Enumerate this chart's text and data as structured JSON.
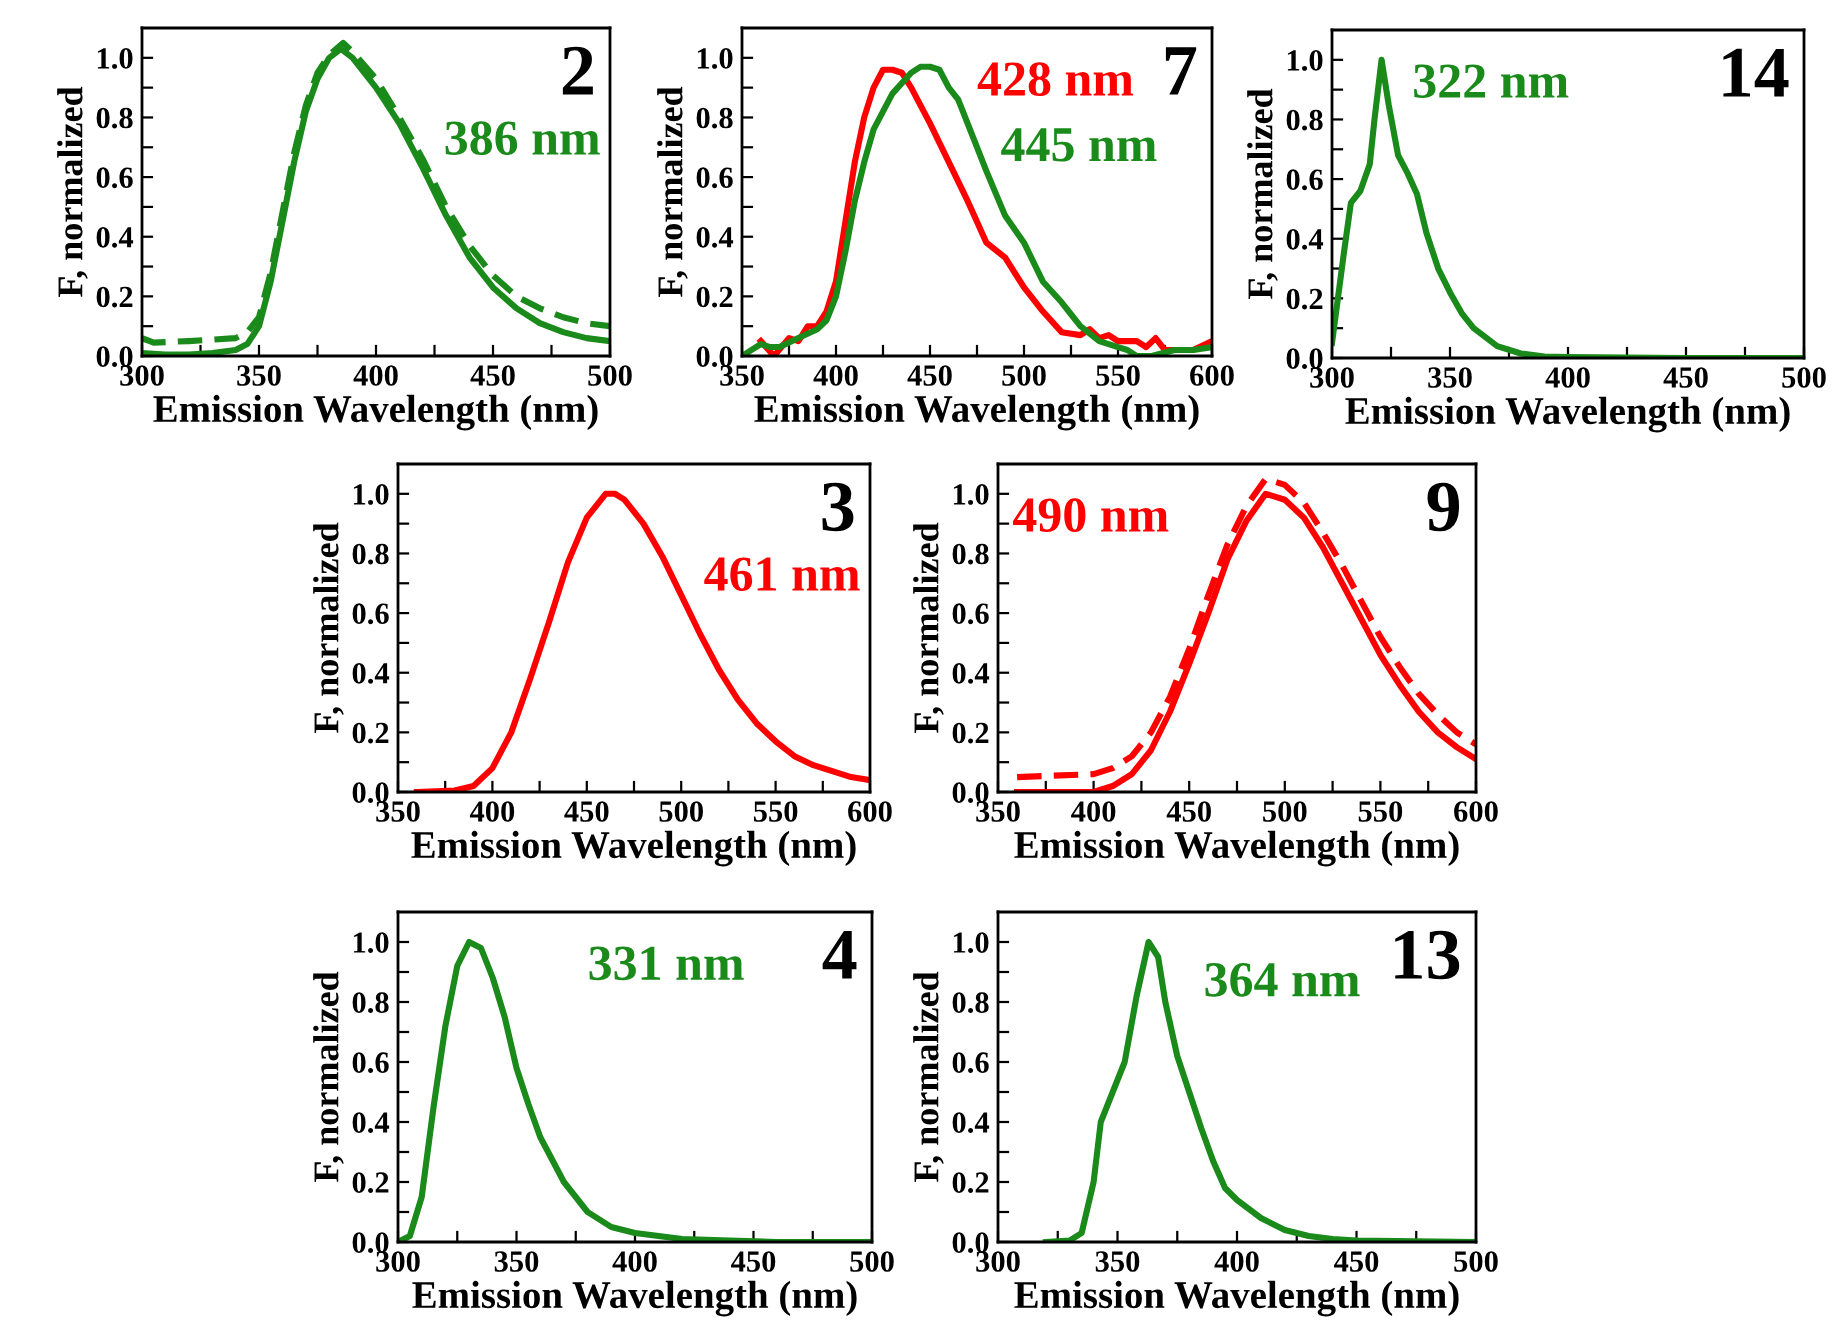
{
  "chart_data": [
    {
      "type": "line",
      "title": "2",
      "xlabel": "Emission Wavelength (nm)",
      "ylabel": "F, normalized",
      "xlim": [
        300,
        500
      ],
      "ylim": [
        0,
        1.1
      ],
      "xticks": [
        300,
        {
          "value": 325,
          "label": null
        },
        350,
        {
          "value": 375,
          "label": null
        },
        400,
        {
          "value": 425,
          "label": null
        },
        450,
        {
          "value": 475,
          "label": null
        },
        500
      ],
      "yticks": [
        {
          "value": 0.0,
          "label": "0.0"
        },
        {
          "value": 0.1,
          "label": null
        },
        {
          "value": 0.2,
          "label": "0.2"
        },
        {
          "value": 0.3,
          "label": null
        },
        {
          "value": 0.4,
          "label": "0.4"
        },
        {
          "value": 0.5,
          "label": null
        },
        {
          "value": 0.6,
          "label": "0.6"
        },
        {
          "value": 0.7,
          "label": null
        },
        {
          "value": 0.8,
          "label": "0.8"
        },
        {
          "value": 0.9,
          "label": null
        },
        {
          "value": 1.0,
          "label": "1.0"
        }
      ],
      "series": [
        {
          "color": "#1a8a1a",
          "line_style": "solid",
          "x": [
            300,
            310,
            320,
            330,
            340,
            345,
            350,
            355,
            360,
            365,
            370,
            375,
            380,
            385,
            390,
            400,
            410,
            420,
            430,
            440,
            450,
            460,
            470,
            480,
            490,
            500
          ],
          "values": [
            0.01,
            0.005,
            0.005,
            0.01,
            0.02,
            0.04,
            0.1,
            0.25,
            0.45,
            0.65,
            0.82,
            0.93,
            1.0,
            1.03,
            1.0,
            0.9,
            0.78,
            0.63,
            0.47,
            0.33,
            0.23,
            0.16,
            0.11,
            0.08,
            0.06,
            0.05
          ]
        },
        {
          "color": "#1a8a1a",
          "line_style": "dashed",
          "x": [
            300,
            305,
            320,
            340,
            345,
            350,
            355,
            360,
            365,
            370,
            375,
            380,
            386,
            390,
            400,
            410,
            420,
            430,
            440,
            450,
            460,
            470,
            480,
            490,
            500
          ],
          "values": [
            0.06,
            0.045,
            0.05,
            0.06,
            0.08,
            0.13,
            0.28,
            0.48,
            0.68,
            0.84,
            0.95,
            1.01,
            1.05,
            1.02,
            0.93,
            0.8,
            0.66,
            0.5,
            0.37,
            0.27,
            0.2,
            0.16,
            0.13,
            0.11,
            0.1
          ]
        }
      ],
      "annotations": [
        "386 nm"
      ]
    },
    {
      "type": "line",
      "title": "7",
      "xlabel": "Emission Wavelength (nm)",
      "ylabel": "F, normalized",
      "xlim": [
        350,
        600
      ],
      "ylim": [
        0,
        1.1
      ],
      "xticks": [
        350,
        {
          "value": 375,
          "label": null
        },
        400,
        {
          "value": 425,
          "label": null
        },
        450,
        {
          "value": 475,
          "label": null
        },
        500,
        {
          "value": 525,
          "label": null
        },
        550,
        {
          "value": 575,
          "label": null
        },
        600
      ],
      "yticks": [
        {
          "value": 0.0,
          "label": "0.0"
        },
        {
          "value": 0.1,
          "label": null
        },
        {
          "value": 0.2,
          "label": "0.2"
        },
        {
          "value": 0.3,
          "label": null
        },
        {
          "value": 0.4,
          "label": "0.4"
        },
        {
          "value": 0.5,
          "label": null
        },
        {
          "value": 0.6,
          "label": "0.6"
        },
        {
          "value": 0.7,
          "label": null
        },
        {
          "value": 0.8,
          "label": "0.8"
        },
        {
          "value": 0.9,
          "label": null
        },
        {
          "value": 1.0,
          "label": "1.0"
        }
      ],
      "series": [
        {
          "color": "#ff0000",
          "line_style": "solid",
          "x": [
            360,
            367,
            375,
            380,
            385,
            390,
            395,
            400,
            405,
            410,
            415,
            420,
            425,
            430,
            435,
            440,
            450,
            460,
            470,
            475,
            480,
            490,
            500,
            510,
            520,
            530,
            535,
            540,
            545,
            550,
            555,
            560,
            565,
            570,
            575,
            580,
            590,
            600
          ],
          "values": [
            0.05,
            0.0,
            0.06,
            0.05,
            0.1,
            0.1,
            0.15,
            0.25,
            0.45,
            0.65,
            0.8,
            0.9,
            0.96,
            0.96,
            0.95,
            0.9,
            0.78,
            0.65,
            0.52,
            0.45,
            0.38,
            0.33,
            0.23,
            0.15,
            0.08,
            0.07,
            0.09,
            0.06,
            0.07,
            0.05,
            0.05,
            0.05,
            0.03,
            0.06,
            0.02,
            0.02,
            0.02,
            0.05
          ]
        },
        {
          "color": "#1a8a1a",
          "line_style": "solid",
          "x": [
            350,
            355,
            360,
            365,
            370,
            380,
            390,
            395,
            400,
            405,
            410,
            415,
            420,
            430,
            440,
            445,
            450,
            455,
            460,
            465,
            470,
            480,
            490,
            500,
            510,
            520,
            525,
            530,
            540,
            550,
            555,
            560,
            568,
            580,
            590,
            600
          ],
          "values": [
            0.0,
            0.02,
            0.04,
            0.03,
            0.03,
            0.06,
            0.09,
            0.12,
            0.2,
            0.35,
            0.52,
            0.65,
            0.76,
            0.88,
            0.95,
            0.97,
            0.97,
            0.96,
            0.9,
            0.86,
            0.78,
            0.62,
            0.47,
            0.38,
            0.25,
            0.18,
            0.14,
            0.1,
            0.05,
            0.03,
            0.02,
            0.0,
            0.0,
            0.02,
            0.02,
            0.03
          ]
        }
      ],
      "annotations": [
        "428 nm",
        "445 nm"
      ]
    },
    {
      "type": "line",
      "title": "14",
      "xlabel": "Emission Wavelength (nm)",
      "ylabel": "F, normalized",
      "xlim": [
        300,
        500
      ],
      "ylim": [
        0,
        1.1
      ],
      "xticks": [
        300,
        {
          "value": 325,
          "label": null
        },
        350,
        {
          "value": 375,
          "label": null
        },
        400,
        {
          "value": 425,
          "label": null
        },
        450,
        {
          "value": 475,
          "label": null
        },
        500
      ],
      "yticks": [
        {
          "value": 0.0,
          "label": "0.0"
        },
        {
          "value": 0.1,
          "label": null
        },
        {
          "value": 0.2,
          "label": "0.2"
        },
        {
          "value": 0.3,
          "label": null
        },
        {
          "value": 0.4,
          "label": "0.4"
        },
        {
          "value": 0.5,
          "label": null
        },
        {
          "value": 0.6,
          "label": "0.6"
        },
        {
          "value": 0.7,
          "label": null
        },
        {
          "value": 0.8,
          "label": "0.8"
        },
        {
          "value": 0.9,
          "label": null
        },
        {
          "value": 1.0,
          "label": "1.0"
        }
      ],
      "series": [
        {
          "color": "#1a8a1a",
          "line_style": "solid",
          "x": [
            300,
            305,
            308,
            312,
            316,
            318,
            321,
            324,
            328,
            332,
            336,
            340,
            345,
            350,
            355,
            360,
            370,
            380,
            390,
            400,
            450,
            500
          ],
          "values": [
            0.05,
            0.35,
            0.52,
            0.56,
            0.65,
            0.8,
            1.0,
            0.85,
            0.68,
            0.62,
            0.55,
            0.42,
            0.3,
            0.22,
            0.15,
            0.1,
            0.04,
            0.015,
            0.005,
            0.003,
            0.0,
            0.0
          ]
        }
      ],
      "annotations": [
        "322 nm"
      ]
    },
    {
      "type": "line",
      "title": "3",
      "xlabel": "Emission Wavelength (nm)",
      "ylabel": "F, normalized",
      "xlim": [
        350,
        600
      ],
      "ylim": [
        0,
        1.1
      ],
      "xticks": [
        350,
        {
          "value": 375,
          "label": null
        },
        400,
        {
          "value": 425,
          "label": null
        },
        450,
        {
          "value": 475,
          "label": null
        },
        500,
        {
          "value": 525,
          "label": null
        },
        550,
        {
          "value": 575,
          "label": null
        },
        600
      ],
      "yticks": [
        {
          "value": 0.0,
          "label": "0.0"
        },
        {
          "value": 0.1,
          "label": null
        },
        {
          "value": 0.2,
          "label": "0.2"
        },
        {
          "value": 0.3,
          "label": null
        },
        {
          "value": 0.4,
          "label": "0.4"
        },
        {
          "value": 0.5,
          "label": null
        },
        {
          "value": 0.6,
          "label": "0.6"
        },
        {
          "value": 0.7,
          "label": null
        },
        {
          "value": 0.8,
          "label": "0.8"
        },
        {
          "value": 0.9,
          "label": null
        },
        {
          "value": 1.0,
          "label": "1.0"
        }
      ],
      "series": [
        {
          "color": "#ff0000",
          "line_style": "solid",
          "x": [
            360,
            380,
            390,
            400,
            410,
            420,
            430,
            440,
            450,
            460,
            465,
            470,
            480,
            490,
            500,
            510,
            520,
            530,
            540,
            550,
            560,
            570,
            580,
            590,
            600
          ],
          "values": [
            0.0,
            0.005,
            0.02,
            0.08,
            0.2,
            0.38,
            0.57,
            0.77,
            0.92,
            1.0,
            1.0,
            0.98,
            0.9,
            0.79,
            0.66,
            0.53,
            0.41,
            0.31,
            0.23,
            0.17,
            0.12,
            0.09,
            0.07,
            0.05,
            0.04
          ]
        }
      ],
      "annotations": [
        "461 nm"
      ]
    },
    {
      "type": "line",
      "title": "9",
      "xlabel": "Emission Wavelength (nm)",
      "ylabel": "F, normalized",
      "xlim": [
        350,
        600
      ],
      "ylim": [
        0,
        1.1
      ],
      "xticks": [
        350,
        {
          "value": 375,
          "label": null
        },
        400,
        {
          "value": 425,
          "label": null
        },
        450,
        {
          "value": 475,
          "label": null
        },
        500,
        {
          "value": 525,
          "label": null
        },
        550,
        {
          "value": 575,
          "label": null
        },
        600
      ],
      "yticks": [
        {
          "value": 0.0,
          "label": "0.0"
        },
        {
          "value": 0.1,
          "label": null
        },
        {
          "value": 0.2,
          "label": "0.2"
        },
        {
          "value": 0.3,
          "label": null
        },
        {
          "value": 0.4,
          "label": "0.4"
        },
        {
          "value": 0.5,
          "label": null
        },
        {
          "value": 0.6,
          "label": "0.6"
        },
        {
          "value": 0.7,
          "label": null
        },
        {
          "value": 0.8,
          "label": "0.8"
        },
        {
          "value": 0.9,
          "label": null
        },
        {
          "value": 1.0,
          "label": "1.0"
        }
      ],
      "series": [
        {
          "color": "#ff0000",
          "line_style": "solid",
          "x": [
            360,
            400,
            410,
            420,
            430,
            440,
            450,
            460,
            470,
            480,
            490,
            500,
            510,
            520,
            530,
            540,
            550,
            560,
            570,
            580,
            590,
            600
          ],
          "values": [
            0.0,
            0.0,
            0.02,
            0.06,
            0.14,
            0.27,
            0.43,
            0.6,
            0.78,
            0.91,
            1.0,
            0.98,
            0.92,
            0.82,
            0.7,
            0.58,
            0.46,
            0.36,
            0.27,
            0.2,
            0.15,
            0.11
          ]
        },
        {
          "color": "#ff0000",
          "line_style": "dashed",
          "x": [
            360,
            400,
            410,
            420,
            430,
            440,
            450,
            460,
            470,
            480,
            490,
            500,
            510,
            520,
            530,
            540,
            550,
            560,
            570,
            580,
            590,
            600
          ],
          "values": [
            0.05,
            0.06,
            0.08,
            0.12,
            0.2,
            0.32,
            0.48,
            0.66,
            0.83,
            0.96,
            1.05,
            1.03,
            0.97,
            0.87,
            0.76,
            0.64,
            0.52,
            0.42,
            0.33,
            0.26,
            0.2,
            0.16
          ]
        }
      ],
      "annotations": [
        "490 nm"
      ]
    },
    {
      "type": "line",
      "title": "4",
      "xlabel": "Emission Wavelength (nm)",
      "ylabel": "F, normalized",
      "xlim": [
        300,
        500
      ],
      "ylim": [
        0,
        1.1
      ],
      "xticks": [
        300,
        {
          "value": 325,
          "label": null
        },
        350,
        {
          "value": 375,
          "label": null
        },
        400,
        {
          "value": 425,
          "label": null
        },
        450,
        {
          "value": 475,
          "label": null
        },
        500
      ],
      "yticks": [
        {
          "value": 0.0,
          "label": "0.0"
        },
        {
          "value": 0.1,
          "label": null
        },
        {
          "value": 0.2,
          "label": "0.2"
        },
        {
          "value": 0.3,
          "label": null
        },
        {
          "value": 0.4,
          "label": "0.4"
        },
        {
          "value": 0.5,
          "label": null
        },
        {
          "value": 0.6,
          "label": "0.6"
        },
        {
          "value": 0.7,
          "label": null
        },
        {
          "value": 0.8,
          "label": "0.8"
        },
        {
          "value": 0.9,
          "label": null
        },
        {
          "value": 1.0,
          "label": "1.0"
        }
      ],
      "series": [
        {
          "color": "#1a8a1a",
          "line_style": "solid",
          "x": [
            300,
            305,
            310,
            315,
            320,
            325,
            330,
            335,
            340,
            345,
            350,
            355,
            360,
            370,
            380,
            390,
            400,
            420,
            440,
            460,
            500
          ],
          "values": [
            0.0,
            0.02,
            0.15,
            0.45,
            0.72,
            0.92,
            1.0,
            0.98,
            0.88,
            0.75,
            0.58,
            0.46,
            0.35,
            0.2,
            0.1,
            0.05,
            0.03,
            0.01,
            0.005,
            0.0,
            0.0
          ]
        }
      ],
      "annotations": [
        "331 nm"
      ]
    },
    {
      "type": "line",
      "title": "13",
      "xlabel": "Emission Wavelength (nm)",
      "ylabel": "F, normalized",
      "xlim": [
        300,
        500
      ],
      "ylim": [
        0,
        1.1
      ],
      "xticks": [
        300,
        {
          "value": 325,
          "label": null
        },
        350,
        {
          "value": 375,
          "label": null
        },
        400,
        {
          "value": 425,
          "label": null
        },
        450,
        {
          "value": 475,
          "label": null
        },
        500
      ],
      "yticks": [
        {
          "value": 0.0,
          "label": "0.0"
        },
        {
          "value": 0.1,
          "label": null
        },
        {
          "value": 0.2,
          "label": "0.2"
        },
        {
          "value": 0.3,
          "label": null
        },
        {
          "value": 0.4,
          "label": "0.4"
        },
        {
          "value": 0.5,
          "label": null
        },
        {
          "value": 0.6,
          "label": "0.6"
        },
        {
          "value": 0.7,
          "label": null
        },
        {
          "value": 0.8,
          "label": "0.8"
        },
        {
          "value": 0.9,
          "label": null
        },
        {
          "value": 1.0,
          "label": "1.0"
        }
      ],
      "series": [
        {
          "color": "#1a8a1a",
          "line_style": "solid",
          "x": [
            320,
            330,
            335,
            340,
            343,
            348,
            353,
            358,
            363,
            367,
            370,
            375,
            380,
            385,
            390,
            395,
            400,
            410,
            420,
            430,
            440,
            450,
            500
          ],
          "values": [
            0.0,
            0.005,
            0.03,
            0.2,
            0.4,
            0.5,
            0.6,
            0.82,
            1.0,
            0.95,
            0.8,
            0.62,
            0.5,
            0.38,
            0.27,
            0.18,
            0.14,
            0.08,
            0.04,
            0.02,
            0.01,
            0.005,
            0.0
          ]
        }
      ],
      "annotations": [
        "364 nm"
      ]
    }
  ]
}
